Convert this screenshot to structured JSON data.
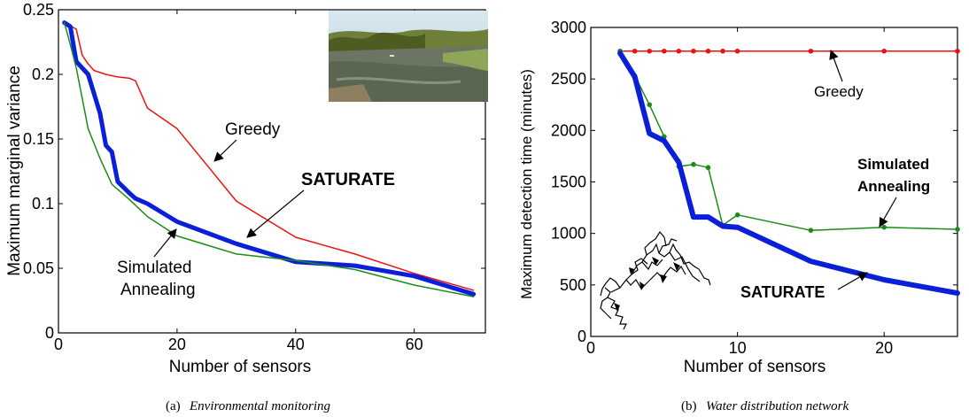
{
  "chart_data": [
    {
      "type": "line",
      "xlabel": "Number of sensors",
      "ylabel": "Maximum marginal variance",
      "xlim": [
        0,
        72
      ],
      "ylim": [
        0,
        0.25
      ],
      "xticks": [
        0,
        20,
        40,
        60
      ],
      "yticks": [
        0,
        0.05,
        0.1,
        0.15,
        0.2,
        0.25
      ],
      "xtick_labels": [
        "0",
        "20",
        "40",
        "60"
      ],
      "ytick_labels": [
        "0",
        "0.05",
        "0.1",
        "0.15",
        "0.2",
        "0.25"
      ],
      "caption_tag": "(a)",
      "caption_title": "Environmental monitoring",
      "inset_image": "river photograph",
      "series": [
        {
          "name": "Greedy",
          "color": "#ee1111",
          "width": 1.5,
          "markers": false,
          "x": [
            1,
            3,
            4,
            5,
            6,
            8,
            10,
            12,
            13,
            15,
            20,
            25,
            30,
            40,
            50,
            60,
            70
          ],
          "y": [
            0.24,
            0.235,
            0.215,
            0.208,
            0.203,
            0.2,
            0.198,
            0.197,
            0.195,
            0.174,
            0.158,
            0.13,
            0.102,
            0.074,
            0.061,
            0.046,
            0.033
          ]
        },
        {
          "name": "SATURATE",
          "color": "#0a1fd8",
          "width": 5,
          "markers": false,
          "x": [
            1,
            2,
            3,
            5,
            6,
            7,
            8,
            9,
            10,
            12,
            13,
            15,
            20,
            30,
            40,
            50,
            60,
            70
          ],
          "y": [
            0.24,
            0.237,
            0.21,
            0.2,
            0.185,
            0.17,
            0.145,
            0.14,
            0.117,
            0.108,
            0.104,
            0.1,
            0.086,
            0.069,
            0.055,
            0.052,
            0.044,
            0.03
          ],
          "label_weight": "bold"
        },
        {
          "name": "Simulated Annealing",
          "color": "#1a8c1a",
          "width": 1.5,
          "markers": false,
          "x": [
            1,
            2,
            3,
            5,
            7,
            9,
            12,
            15,
            20,
            30,
            40,
            50,
            60,
            70
          ],
          "y": [
            0.24,
            0.223,
            0.205,
            0.158,
            0.135,
            0.115,
            0.103,
            0.09,
            0.075,
            0.061,
            0.056,
            0.049,
            0.037,
            0.028
          ]
        }
      ],
      "annotations": [
        {
          "text": "Greedy",
          "target_series": "Greedy"
        },
        {
          "text": "SATURATE",
          "target_series": "SATURATE"
        },
        {
          "text": "Simulated",
          "target_series": "Simulated Annealing"
        },
        {
          "text": "Annealing",
          "target_series": "Simulated Annealing"
        }
      ]
    },
    {
      "type": "line",
      "xlabel": "Number of sensors",
      "ylabel": "Maximum detection time (minutes)",
      "xlim": [
        0,
        25
      ],
      "ylim": [
        0,
        3000
      ],
      "xticks": [
        0,
        10,
        20
      ],
      "yticks": [
        0,
        500,
        1000,
        1500,
        2000,
        2500,
        3000
      ],
      "xtick_labels": [
        "0",
        "10",
        "20"
      ],
      "ytick_labels": [
        "0",
        "500",
        "1000",
        "1500",
        "2000",
        "2500",
        "3000"
      ],
      "caption_tag": "(b)",
      "caption_title": "Water distribution network",
      "inset_image": "network graph",
      "series": [
        {
          "name": "Greedy",
          "color": "#ee1111",
          "width": 1.5,
          "markers": true,
          "x": [
            2,
            3,
            4,
            5,
            6,
            7,
            8,
            9,
            10,
            15,
            20,
            25
          ],
          "y": [
            2770,
            2770,
            2770,
            2770,
            2770,
            2770,
            2770,
            2770,
            2770,
            2770,
            2770,
            2770
          ]
        },
        {
          "name": "Simulated Annealing",
          "color": "#1a8c1a",
          "width": 1.5,
          "markers": true,
          "x": [
            2,
            3,
            4,
            5,
            6,
            7,
            8,
            9,
            10,
            15,
            20,
            25
          ],
          "y": [
            2770,
            2530,
            2250,
            1940,
            1650,
            1670,
            1640,
            1080,
            1180,
            1030,
            1060,
            1040
          ]
        },
        {
          "name": "SATURATE",
          "color": "#0a1fd8",
          "width": 6,
          "markers": false,
          "x": [
            2,
            3,
            4,
            5,
            6,
            7,
            8,
            9,
            10,
            15,
            20,
            25
          ],
          "y": [
            2750,
            2520,
            1970,
            1900,
            1690,
            1160,
            1160,
            1070,
            1060,
            730,
            550,
            420
          ],
          "label_weight": "bold"
        }
      ],
      "annotations": [
        {
          "text": "Greedy",
          "target_series": "Greedy"
        },
        {
          "text": "Simulated",
          "target_series": "Simulated Annealing"
        },
        {
          "text": "Annealing",
          "target_series": "Simulated Annealing"
        },
        {
          "text": "SATURATE",
          "target_series": "SATURATE"
        }
      ]
    }
  ]
}
